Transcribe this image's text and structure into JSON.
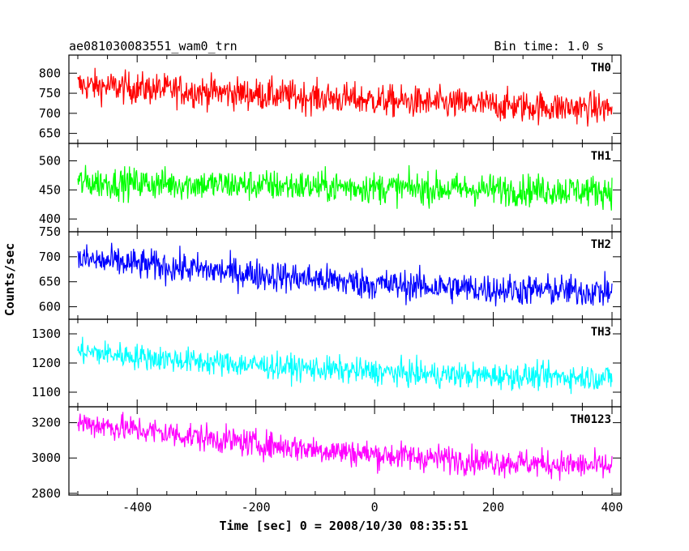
{
  "chart_data": {
    "type": "line",
    "title": "ae081030083551_wam0_trn",
    "subtitle": "Bin time: 1.0 s",
    "xlabel": "Time [sec] 0 = 2008/10/30 08:35:51",
    "ylabel": "Counts/sec",
    "xlim": [
      -515,
      415
    ],
    "x_ticks": [
      "-400",
      "-200",
      "0",
      "200",
      "400"
    ],
    "x_tick_values": [
      -400,
      -200,
      0,
      200,
      400
    ],
    "x_range": [
      -500,
      400
    ],
    "panels": [
      {
        "name": "TH0",
        "color": "#ff0000",
        "ylim": [
          625,
          845
        ],
        "y_ticks": [
          "650",
          "700",
          "750",
          "800"
        ],
        "y_tick_values": [
          650,
          700,
          750,
          800
        ],
        "trend": [
          [
            -500,
            770
          ],
          [
            -300,
            755
          ],
          [
            -100,
            740
          ],
          [
            100,
            725
          ],
          [
            300,
            715
          ],
          [
            400,
            712
          ]
        ],
        "noise": 38
      },
      {
        "name": "TH1",
        "color": "#00ff00",
        "ylim": [
          378,
          530
        ],
        "y_ticks": [
          "400",
          "450",
          "500"
        ],
        "y_tick_values": [
          400,
          450,
          500
        ],
        "trend": [
          [
            -500,
            463
          ],
          [
            -200,
            458
          ],
          [
            100,
            452
          ],
          [
            400,
            448
          ]
        ],
        "noise": 26
      },
      {
        "name": "TH2",
        "color": "#0000ff",
        "ylim": [
          575,
          750
        ],
        "y_ticks": [
          "600",
          "650",
          "700",
          "750"
        ],
        "y_tick_values": [
          600,
          650,
          700,
          750
        ],
        "trend": [
          [
            -500,
            695
          ],
          [
            -350,
            680
          ],
          [
            -200,
            665
          ],
          [
            0,
            645
          ],
          [
            200,
            635
          ],
          [
            400,
            630
          ]
        ],
        "noise": 30
      },
      {
        "name": "TH3",
        "color": "#00ffff",
        "ylim": [
          1050,
          1350
        ],
        "y_ticks": [
          "1100",
          "1200",
          "1300"
        ],
        "y_tick_values": [
          1100,
          1200,
          1300
        ],
        "trend": [
          [
            -500,
            1240
          ],
          [
            -300,
            1205
          ],
          [
            -100,
            1180
          ],
          [
            100,
            1160
          ],
          [
            400,
            1150
          ]
        ],
        "noise": 42
      },
      {
        "name": "TH0123",
        "color": "#ff00ff",
        "ylim": [
          2790,
          3290
        ],
        "y_ticks": [
          "2800",
          "3000",
          "3200"
        ],
        "y_tick_values": [
          2800,
          3000,
          3200
        ],
        "trend": [
          [
            -500,
            3200
          ],
          [
            -400,
            3160
          ],
          [
            -200,
            3080
          ],
          [
            0,
            3020
          ],
          [
            200,
            2980
          ],
          [
            400,
            2950
          ]
        ],
        "noise": 75
      }
    ]
  }
}
